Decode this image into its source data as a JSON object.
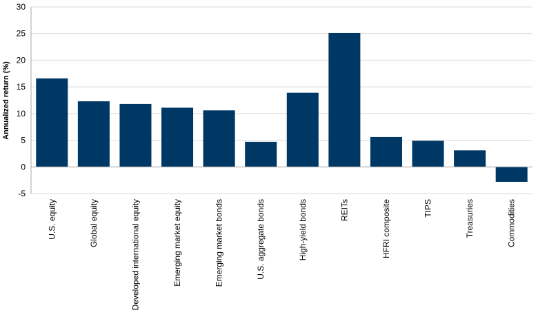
{
  "chart_data": {
    "type": "bar",
    "title": "",
    "xlabel": "",
    "ylabel": "Annualized return (%)",
    "ylim": [
      -5,
      30
    ],
    "yticks": [
      "-5",
      "0",
      "5",
      "10",
      "15",
      "20",
      "25",
      "30"
    ],
    "grid": true,
    "categories": [
      "U.S. equity",
      "Global equity",
      "Developed international equity",
      "Emerging market equity",
      "Emerging market bonds",
      "U.S. aggregate bonds",
      "High-yield bonds",
      "REITs",
      "HFRI composite",
      "TIPS",
      "Treasuries",
      "Commodities"
    ],
    "values": [
      16.6,
      12.3,
      11.8,
      11.1,
      10.6,
      4.7,
      13.9,
      25.1,
      5.6,
      4.9,
      3.1,
      -2.8
    ],
    "bar_color": "#003865",
    "grid_color": "#d9d9d9",
    "axis_color": "#a6a6a6"
  }
}
